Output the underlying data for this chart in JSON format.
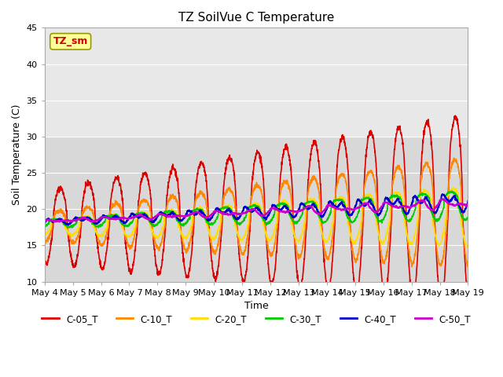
{
  "title": "TZ SoilVue C Temperature",
  "ylabel": "Soil Temperature (C)",
  "xlabel": "Time",
  "ylim": [
    10,
    45
  ],
  "annotation": "TZ_sm",
  "annotation_color": "#cc0000",
  "annotation_bg": "#ffff99",
  "background_color": "#ffffff",
  "plot_bg_lower_color": "#d8d8d8",
  "plot_bg_upper_color": "#e8e8e8",
  "grid_color": "#ffffff",
  "series": {
    "C-05_T": {
      "color": "#dd0000",
      "lw": 1.2
    },
    "C-10_T": {
      "color": "#ff8800",
      "lw": 1.2
    },
    "C-20_T": {
      "color": "#ffdd00",
      "lw": 1.2
    },
    "C-30_T": {
      "color": "#00cc00",
      "lw": 1.2
    },
    "C-40_T": {
      "color": "#0000cc",
      "lw": 1.5
    },
    "C-50_T": {
      "color": "#cc00cc",
      "lw": 1.5
    }
  },
  "start_day": 4,
  "end_day": 19,
  "points_per_day": 144,
  "seed": 42
}
